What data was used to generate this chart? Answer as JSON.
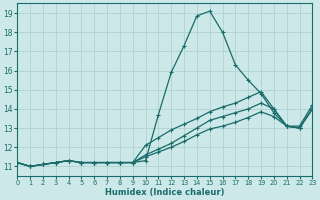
{
  "xlabel": "Humidex (Indice chaleur)",
  "bg_color": "#cce8e8",
  "line_color": "#1a6b6b",
  "grid_color": "#aacece",
  "xlim": [
    0,
    23
  ],
  "ylim": [
    10.5,
    19.5
  ],
  "xticks": [
    0,
    1,
    2,
    3,
    4,
    5,
    6,
    7,
    8,
    9,
    10,
    11,
    12,
    13,
    14,
    15,
    16,
    17,
    18,
    19,
    20,
    21,
    22,
    23
  ],
  "yticks": [
    11,
    12,
    13,
    14,
    15,
    16,
    17,
    18,
    19
  ],
  "lines": [
    {
      "y": [
        11.2,
        11.0,
        11.1,
        11.2,
        11.3,
        11.2,
        11.2,
        11.2,
        11.2,
        11.2,
        11.3,
        13.7,
        15.9,
        17.3,
        18.85,
        19.1,
        18.0,
        16.3,
        15.5,
        14.8,
        13.8,
        13.1,
        13.1,
        14.2
      ]
    },
    {
      "y": [
        11.2,
        11.0,
        11.1,
        11.2,
        11.3,
        11.2,
        11.2,
        11.2,
        11.2,
        11.2,
        11.6,
        11.9,
        12.2,
        12.6,
        13.0,
        13.4,
        13.6,
        13.8,
        14.0,
        14.3,
        14.0,
        13.1,
        13.0,
        14.0
      ]
    },
    {
      "y": [
        11.2,
        11.0,
        11.1,
        11.2,
        11.3,
        11.2,
        11.2,
        11.2,
        11.2,
        11.2,
        11.5,
        11.75,
        12.0,
        12.3,
        12.65,
        12.95,
        13.1,
        13.3,
        13.55,
        13.85,
        13.6,
        13.1,
        13.0,
        14.0
      ]
    },
    {
      "y": [
        11.2,
        11.0,
        11.1,
        11.2,
        11.3,
        11.2,
        11.2,
        11.2,
        11.2,
        11.2,
        12.1,
        12.5,
        12.9,
        13.2,
        13.5,
        13.85,
        14.1,
        14.3,
        14.6,
        14.9,
        14.0,
        13.1,
        13.0,
        14.0
      ]
    }
  ]
}
